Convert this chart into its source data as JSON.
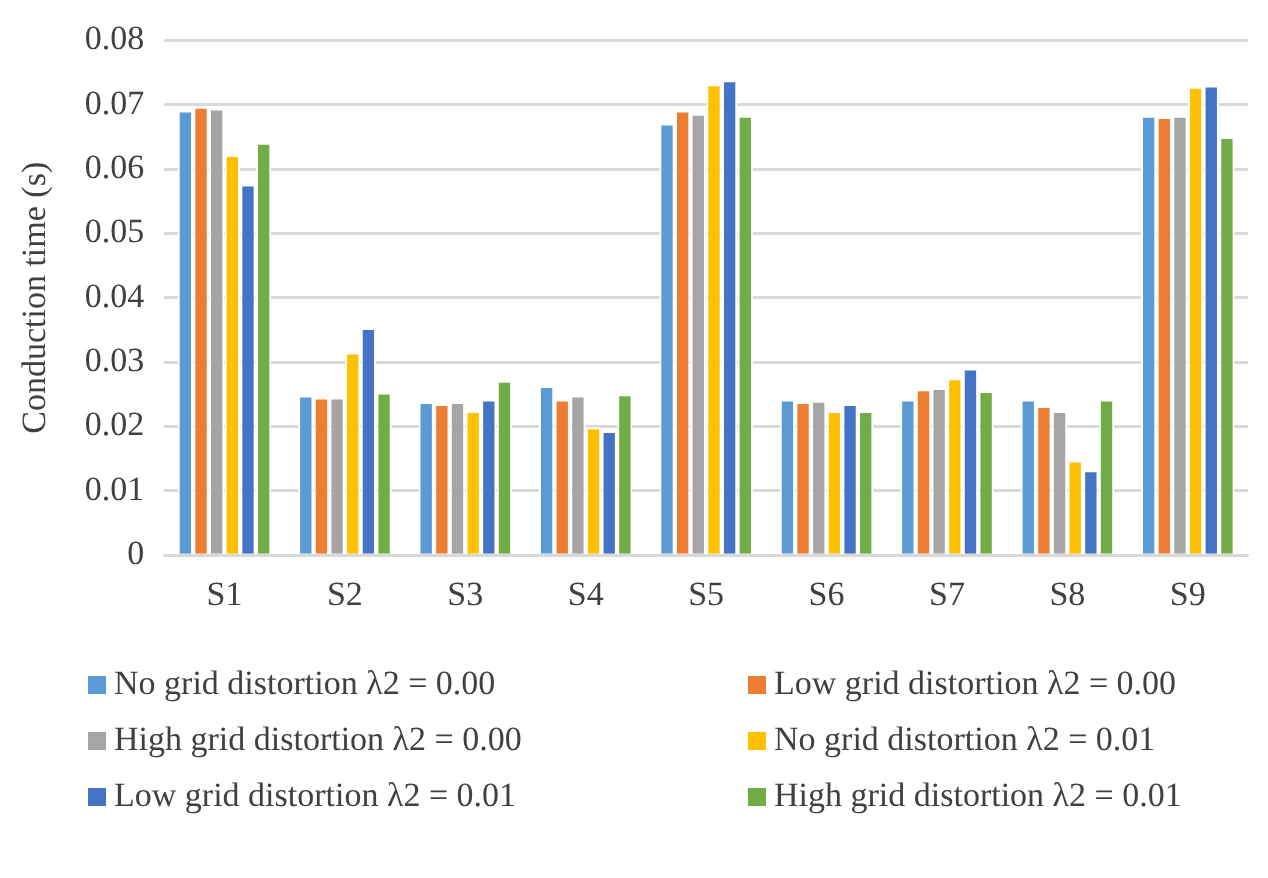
{
  "chart_data": {
    "type": "bar",
    "ylabel": "Conduction time (s)",
    "categories": [
      "S1",
      "S2",
      "S3",
      "S4",
      "S5",
      "S6",
      "S7",
      "S8",
      "S9"
    ],
    "series": [
      {
        "name": "No grid distortion λ2 = 0.00",
        "color": "#5b9bd5",
        "values": [
          0.0691,
          0.0248,
          0.0238,
          0.0263,
          0.0671,
          0.0242,
          0.0242,
          0.0242,
          0.0683
        ]
      },
      {
        "name": "Low grid distortion λ2 = 0.00",
        "color": "#ed7d31",
        "values": [
          0.0697,
          0.0245,
          0.0235,
          0.0242,
          0.0691,
          0.0238,
          0.0258,
          0.0232,
          0.0681
        ]
      },
      {
        "name": "High grid distortion λ2 = 0.00",
        "color": "#a5a5a5",
        "values": [
          0.0694,
          0.0245,
          0.0238,
          0.0248,
          0.0686,
          0.024,
          0.026,
          0.0224,
          0.0683
        ]
      },
      {
        "name": "No grid distortion λ2 = 0.01",
        "color": "#ffc000",
        "values": [
          0.0622,
          0.0315,
          0.0224,
          0.0199,
          0.0732,
          0.0224,
          0.0275,
          0.0147,
          0.0728
        ]
      },
      {
        "name": "Low grid distortion λ2 = 0.01",
        "color": "#4472c4",
        "values": [
          0.0576,
          0.0353,
          0.0242,
          0.0193,
          0.0738,
          0.0235,
          0.029,
          0.0132,
          0.073
        ]
      },
      {
        "name": "High grid distortion λ2 = 0.01",
        "color": "#70ad47",
        "values": [
          0.0641,
          0.0253,
          0.0271,
          0.025,
          0.0683,
          0.0224,
          0.0255,
          0.0242,
          0.065
        ]
      }
    ],
    "ylim": [
      0,
      0.08
    ],
    "yticks": [
      0,
      0.01,
      0.02,
      0.03,
      0.04,
      0.05,
      0.06,
      0.07,
      0.08
    ],
    "grid": "y",
    "legend": "bottom"
  }
}
